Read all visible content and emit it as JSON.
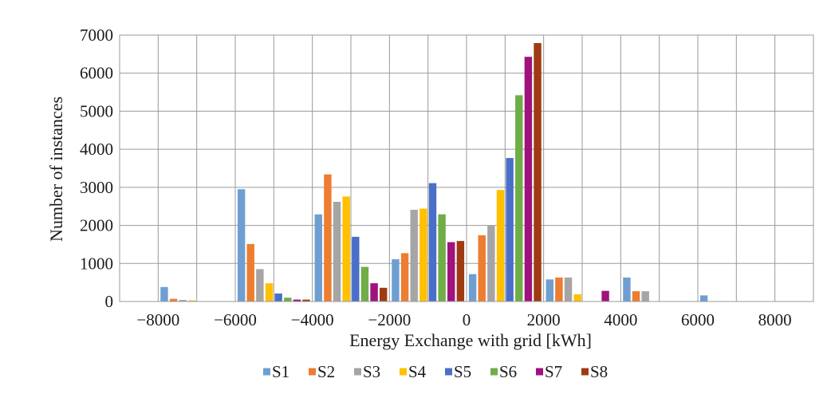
{
  "chart_data": {
    "type": "bar",
    "xlabel": "Energy Exchange with grid [kWh]",
    "ylabel": "Number of instances",
    "ylim": [
      0,
      7000
    ],
    "xlim": [
      -9000,
      9000
    ],
    "bin_width": 2000,
    "grid": true,
    "legend_position": "bottom",
    "y_ticks": [
      "0",
      "1000",
      "2000",
      "3000",
      "4000",
      "5000",
      "6000",
      "7000"
    ],
    "x_ticks": [
      "−8000",
      "−6000",
      "−4000",
      "−2000",
      "0",
      "2000",
      "4000",
      "6000",
      "8000"
    ],
    "categories": [
      -7000,
      -5000,
      -3000,
      -1000,
      1000,
      3000,
      5000,
      7000
    ],
    "series": [
      {
        "name": "S1",
        "color": "#6f9fd2",
        "values": [
          380,
          2950,
          2290,
          1110,
          720,
          580,
          630,
          160
        ]
      },
      {
        "name": "S2",
        "color": "#ed7d31",
        "values": [
          70,
          1510,
          3340,
          1270,
          1740,
          630,
          270,
          0
        ]
      },
      {
        "name": "S3",
        "color": "#a5a5a5",
        "values": [
          40,
          850,
          2620,
          2410,
          2000,
          630,
          270,
          0
        ]
      },
      {
        "name": "S4",
        "color": "#ffc000",
        "values": [
          30,
          480,
          2760,
          2440,
          2930,
          190,
          0,
          0
        ]
      },
      {
        "name": "S5",
        "color": "#4a6fc8",
        "values": [
          0,
          210,
          1700,
          3110,
          3770,
          0,
          0,
          0
        ]
      },
      {
        "name": "S6",
        "color": "#70ad47",
        "values": [
          0,
          100,
          910,
          2290,
          5420,
          0,
          0,
          0
        ]
      },
      {
        "name": "S7",
        "color": "#a0127e",
        "values": [
          0,
          50,
          480,
          1560,
          6430,
          280,
          0,
          0
        ]
      },
      {
        "name": "S8",
        "color": "#9e3b13",
        "values": [
          0,
          50,
          360,
          1590,
          6790,
          0,
          0,
          0
        ]
      }
    ]
  }
}
